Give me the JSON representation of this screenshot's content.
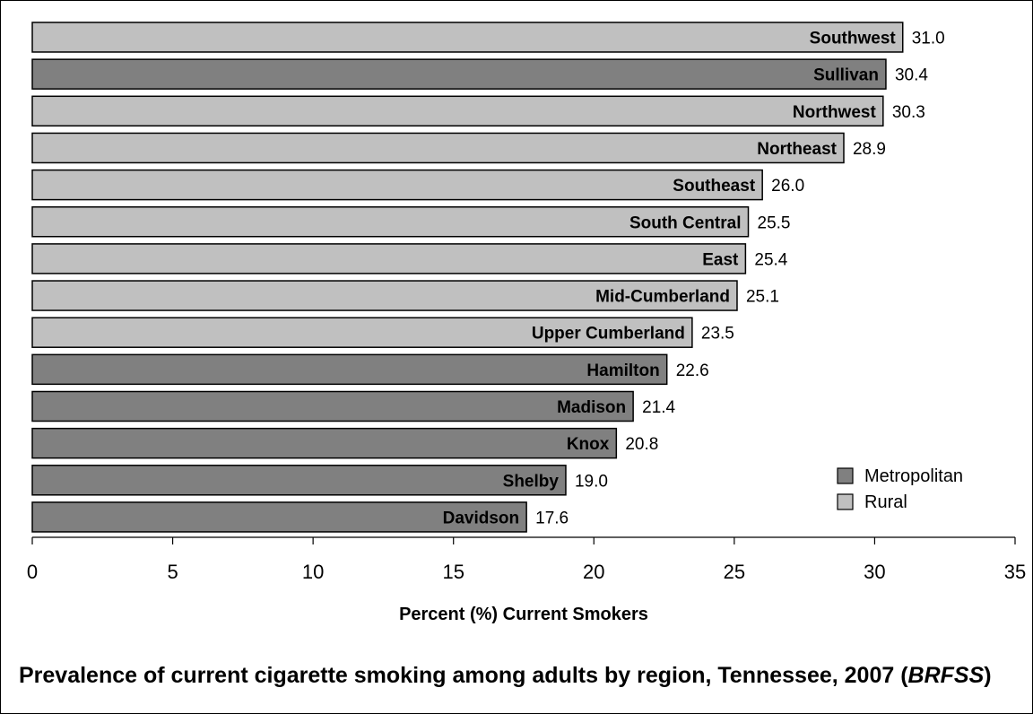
{
  "chart_data": {
    "type": "bar",
    "orientation": "horizontal",
    "categories": [
      "Southwest",
      "Sullivan",
      "Northwest",
      "Northeast",
      "Southeast",
      "South Central",
      "East",
      "Mid-Cumberland",
      "Upper Cumberland",
      "Hamilton",
      "Madison",
      "Knox",
      "Shelby",
      "Davidson"
    ],
    "values": [
      31.0,
      30.4,
      30.3,
      28.9,
      26.0,
      25.5,
      25.4,
      25.1,
      23.5,
      22.6,
      21.4,
      20.8,
      19.0,
      17.6
    ],
    "value_labels": [
      "31.0",
      "30.4",
      "30.3",
      "28.9",
      "26.0",
      "25.5",
      "25.4",
      "25.1",
      "23.5",
      "22.6",
      "21.4",
      "20.8",
      "19.0",
      "17.6"
    ],
    "group": [
      "Rural",
      "Metropolitan",
      "Rural",
      "Rural",
      "Rural",
      "Rural",
      "Rural",
      "Rural",
      "Rural",
      "Metropolitan",
      "Metropolitan",
      "Metropolitan",
      "Metropolitan",
      "Metropolitan"
    ],
    "legend": [
      {
        "name": "Metropolitan",
        "color": "#808080"
      },
      {
        "name": "Rural",
        "color": "#c0c0c0"
      }
    ],
    "legend_position": "bottom-right",
    "xlabel": "Percent (%) Current Smokers",
    "xlim": [
      0,
      35
    ],
    "xticks": [
      0,
      5,
      10,
      15,
      20,
      25,
      30,
      35
    ],
    "grid": false,
    "title_main": "Prevalence of current cigarette smoking among adults by region, Tennessee, 2007 (",
    "title_source": "BRFSS",
    "title_end": ")"
  }
}
